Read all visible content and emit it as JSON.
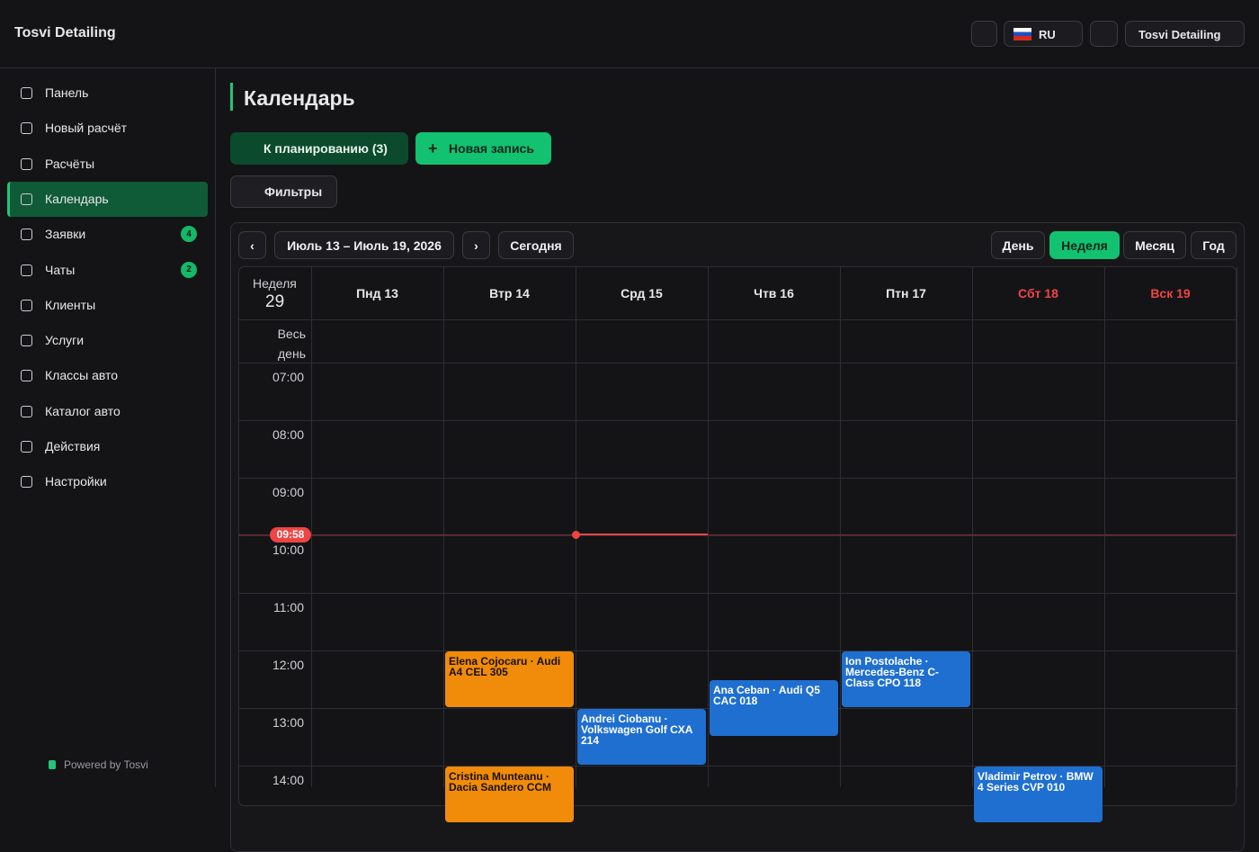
{
  "header": {
    "brand": "Tosvi Detailing",
    "language": "RU",
    "account": "Tosvi Detailing"
  },
  "sidebar": {
    "items": [
      {
        "label": "Панель"
      },
      {
        "label": "Новый расчёт"
      },
      {
        "label": "Расчёты"
      },
      {
        "label": "Календарь",
        "active": true
      },
      {
        "label": "Заявки",
        "badge": 4
      },
      {
        "label": "Чаты",
        "badge": 2
      },
      {
        "label": "Клиенты"
      },
      {
        "label": "Услуги"
      },
      {
        "label": "Классы авто"
      },
      {
        "label": "Каталог авто"
      },
      {
        "label": "Действия"
      },
      {
        "label": "Настройки"
      }
    ],
    "footer": "Powered by Tosvi"
  },
  "main": {
    "title": "Календарь",
    "buttons": {
      "schedule": "К планированию (3)",
      "new": "Новая запись",
      "filters": "Фильтры"
    }
  },
  "calendar": {
    "range": "Июль 13 – Июль 19, 2026",
    "today": "Сегодня",
    "views": [
      {
        "label": "День"
      },
      {
        "label": "Неделя",
        "active": true
      },
      {
        "label": "Месяц"
      },
      {
        "label": "Год"
      }
    ],
    "week_label": "Неделя",
    "week_number": "29",
    "days": [
      {
        "label": "Пнд 13"
      },
      {
        "label": "Втр 14"
      },
      {
        "label": "Срд 15"
      },
      {
        "label": "Чтв 16"
      },
      {
        "label": "Птн 17"
      },
      {
        "label": "Сбт 18",
        "weekend": true
      },
      {
        "label": "Вск 19",
        "weekend": true
      }
    ],
    "all_day": "Весь день",
    "hours": [
      "07:00",
      "08:00",
      "09:00",
      "10:00",
      "11:00",
      "12:00",
      "13:00",
      "14:00"
    ],
    "now": "09:58",
    "events": [
      {
        "text": "Elena Cojocaru · Audi A4 CEL 305"
      },
      {
        "text": "Andrei Ciobanu · Volkswagen Golf CXA 214"
      },
      {
        "text": "Ana Ceban · Audi Q5 CAC 018"
      },
      {
        "text": "Ion Postolache · Mercedes-Benz C-Class CPO 118"
      },
      {
        "text": "Cristina Munteanu · Dacia Sandero CCM"
      },
      {
        "text": "Vladimir Petrov · BMW 4 Series CVP 010"
      }
    ]
  }
}
